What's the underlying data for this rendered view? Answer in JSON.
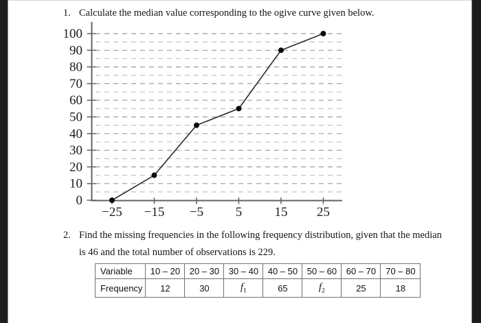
{
  "page": {
    "background": "#ffffff",
    "side_bar_color": "#1d1d20"
  },
  "problem1": {
    "number": "1.",
    "text": "Calculate the median value corresponding to the ogive curve given below."
  },
  "problem2": {
    "number": "2.",
    "line1": "Find the missing frequencies in the following frequency distribution, given that the median",
    "line2": "is 46 and the total number of observations is 229."
  },
  "chart_data": {
    "type": "line",
    "description": "ogive (cumulative frequency curve)",
    "points": [
      {
        "x": -25,
        "y": 0
      },
      {
        "x": -15,
        "y": 15
      },
      {
        "x": -5,
        "y": 45
      },
      {
        "x": 5,
        "y": 55
      },
      {
        "x": 15,
        "y": 90
      },
      {
        "x": 25,
        "y": 100
      }
    ],
    "x_tick_values": [
      -25,
      -15,
      -5,
      5,
      15,
      25
    ],
    "x_tick_labels": [
      "−25",
      "−15",
      "−5",
      "5",
      "15",
      "25"
    ],
    "y_tick_values": [
      0,
      10,
      20,
      30,
      40,
      50,
      60,
      70,
      80,
      90,
      100
    ],
    "xlim": [
      -31,
      27
    ],
    "ylim": [
      0,
      107
    ],
    "grid": "dashed horizontal lines every 5 units",
    "legend_position": "none",
    "xlabel": "",
    "ylabel": "",
    "colors": {
      "curve": "#333333",
      "points": "#0a0a0a",
      "axis": "#636366",
      "grid_major": "#9c9c9c",
      "grid_minor": "#c1c1c1"
    }
  },
  "table": {
    "rows": [
      [
        "Variable",
        "10 – 20",
        "20 – 30",
        "30 – 40",
        "40 – 50",
        "50 – 60",
        "60 – 70",
        "70 – 80"
      ],
      [
        "Frequency",
        "12",
        "30",
        "f_1",
        "65",
        "f_2",
        "25",
        "18"
      ]
    ]
  }
}
